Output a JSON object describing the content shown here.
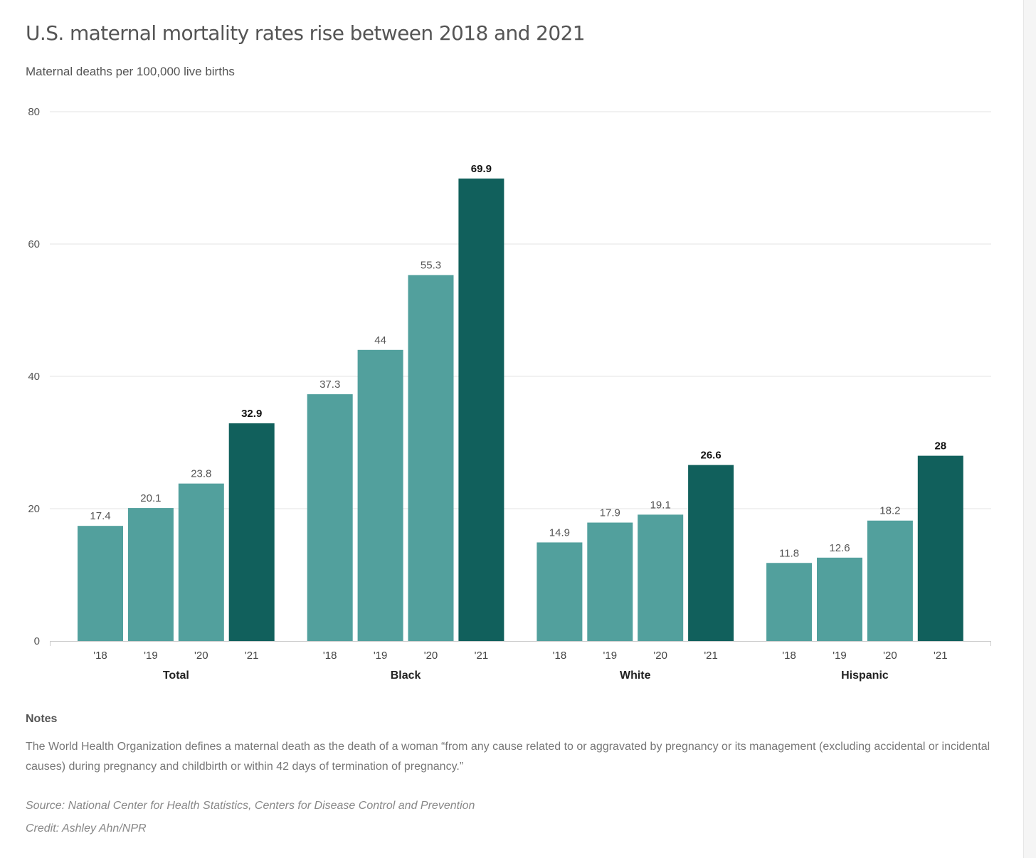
{
  "header": {
    "title": "U.S. maternal mortality rates rise between 2018 and 2021",
    "subtitle": "Maternal deaths per 100,000 live births"
  },
  "chart_data": {
    "type": "bar",
    "title": "U.S. maternal mortality rates rise between 2018 and 2021",
    "subtitle": "Maternal deaths per 100,000 live births",
    "ylim": [
      0,
      80
    ],
    "yticks": [
      "0",
      "20",
      "40",
      "60",
      "80"
    ],
    "grid": true,
    "groups": [
      {
        "name": "Total",
        "categories": [
          "'18",
          "'19",
          "'20",
          "'21"
        ],
        "values": [
          17.4,
          20.1,
          23.8,
          32.9
        ],
        "labels": [
          "17.4",
          "20.1",
          "23.8",
          "32.9"
        ]
      },
      {
        "name": "Black",
        "categories": [
          "'18",
          "'19",
          "'20",
          "'21"
        ],
        "values": [
          37.3,
          44,
          55.3,
          69.9
        ],
        "labels": [
          "37.3",
          "44",
          "55.3",
          "69.9"
        ]
      },
      {
        "name": "White",
        "categories": [
          "'18",
          "'19",
          "'20",
          "'21"
        ],
        "values": [
          14.9,
          17.9,
          19.1,
          26.6
        ],
        "labels": [
          "14.9",
          "17.9",
          "19.1",
          "26.6"
        ]
      },
      {
        "name": "Hispanic",
        "categories": [
          "'18",
          "'19",
          "'20",
          "'21"
        ],
        "values": [
          11.8,
          12.6,
          18.2,
          28
        ],
        "labels": [
          "11.8",
          "12.6",
          "18.2",
          "28"
        ]
      }
    ],
    "colors": {
      "earlier_years": "#52a09d",
      "latest_year": "#11605c"
    },
    "highlight": "'21"
  },
  "notes": {
    "heading": "Notes",
    "text": "The World Health Organization defines a maternal death as the death of a woman “from any cause related to or aggravated by pregnancy or its management (excluding accidental or incidental causes) during pregnancy and childbirth or within 42 days of termination of pregnancy.”"
  },
  "footer": {
    "source": "Source: National Center for Health Statistics, Centers for Disease Control and Prevention",
    "credit": "Credit: Ashley Ahn/NPR"
  }
}
